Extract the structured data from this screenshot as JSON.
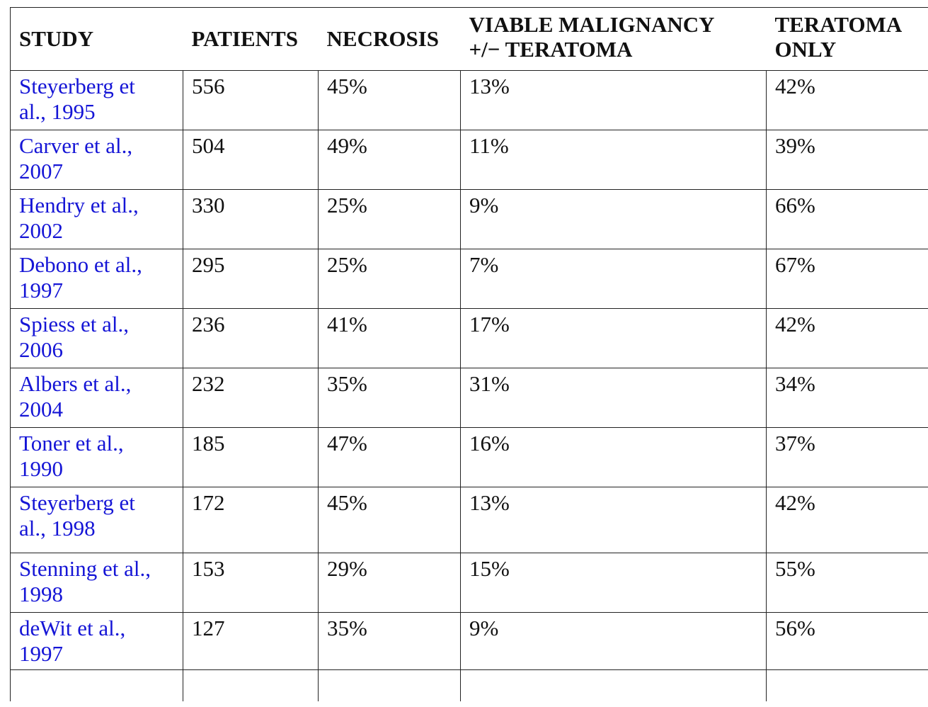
{
  "table": {
    "headers": {
      "study": "STUDY",
      "patients": "PATIENTS",
      "necrosis": "NECROSIS",
      "viable_line1": "VIABLE MALIGNANCY",
      "viable_line2": "+/− TERATOMA",
      "teratoma_line1": "TERATOMA",
      "teratoma_line2": "ONLY"
    },
    "rows": [
      {
        "study_line1": "Steyerberg et",
        "study_line2": "al., 1995",
        "patients": "556",
        "necrosis": "45%",
        "viable": "13%",
        "teratoma": "42%"
      },
      {
        "study_line1": "Carver et al.,",
        "study_line2": "2007",
        "patients": "504",
        "necrosis": "49%",
        "viable": "11%",
        "teratoma": "39%"
      },
      {
        "study_line1": "Hendry et al.,",
        "study_line2": "2002",
        "patients": "330",
        "necrosis": "25%",
        "viable": "9%",
        "teratoma": "66%"
      },
      {
        "study_line1": "Debono et al.,",
        "study_line2": "1997",
        "patients": "295",
        "necrosis": "25%",
        "viable": "7%",
        "teratoma": "67%"
      },
      {
        "study_line1": "Spiess et al.,",
        "study_line2": "2006",
        "patients": "236",
        "necrosis": "41%",
        "viable": "17%",
        "teratoma": "42%"
      },
      {
        "study_line1": "Albers et al.,",
        "study_line2": "2004",
        "patients": "232",
        "necrosis": "35%",
        "viable": "31%",
        "teratoma": "34%"
      },
      {
        "study_line1": "Toner et al.,",
        "study_line2": "1990",
        "patients": "185",
        "necrosis": "47%",
        "viable": "16%",
        "teratoma": "37%"
      },
      {
        "study_line1": "Steyerberg et",
        "study_line2": "al., 1998",
        "patients": "172",
        "necrosis": "45%",
        "viable": "13%",
        "teratoma": "42%"
      },
      {
        "study_line1": "Stenning et al.,",
        "study_line2": "1998",
        "patients": "153",
        "necrosis": "29%",
        "viable": "15%",
        "teratoma": "55%"
      },
      {
        "study_line1": "deWit et al.,",
        "study_line2": "1997",
        "patients": "127",
        "necrosis": "35%",
        "viable": "9%",
        "teratoma": "56%"
      }
    ]
  },
  "colors": {
    "link": "#1515d6",
    "text": "#111111",
    "border": "#222222"
  }
}
